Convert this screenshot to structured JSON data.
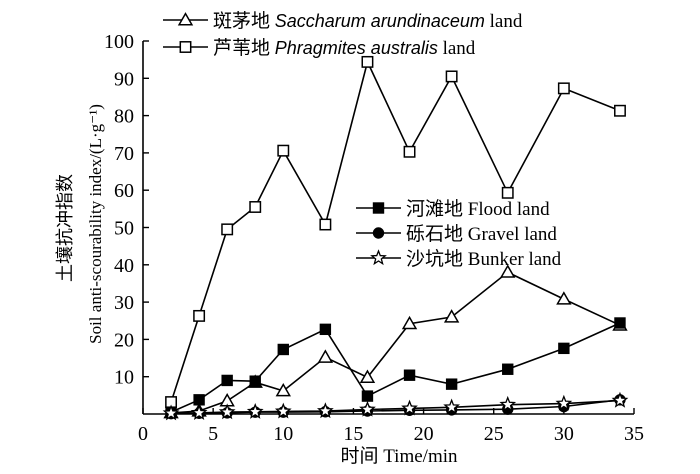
{
  "chart_data": {
    "type": "line",
    "xlabel": "时间 Time/min",
    "ylabel_line1": "土壤抗冲指数",
    "ylabel_line2": "Soil anti-scourability index/(L·g⁻¹)",
    "xlim": [
      0,
      35
    ],
    "ylim": [
      0,
      100
    ],
    "xticks": [
      0,
      5,
      10,
      15,
      20,
      25,
      30,
      35
    ],
    "yticks": [
      10,
      20,
      30,
      40,
      50,
      60,
      70,
      80,
      90,
      100
    ],
    "x": [
      2,
      4,
      6,
      8,
      10,
      13,
      16,
      19,
      22,
      26,
      30,
      34
    ],
    "grid": false,
    "series": [
      {
        "name_cn": "斑茅地",
        "name_en": "Saccharum arundinaceum",
        "name_suffix": "land",
        "marker": "triangle-open",
        "values": [
          0.3,
          0.8,
          3.5,
          8.5,
          6.2,
          15.2,
          9.8,
          24.2,
          26,
          38,
          30.8,
          23.8
        ]
      },
      {
        "name_cn": "芦苇地",
        "name_en": "Phragmites australis",
        "name_suffix": "land",
        "marker": "square-open",
        "values": [
          3.2,
          26.3,
          49.5,
          55.5,
          70.6,
          50.8,
          94.4,
          70.3,
          90.5,
          59.3,
          87.3,
          81.3
        ]
      },
      {
        "name_cn": "河滩地",
        "name_en": "Flood land",
        "marker": "square-filled",
        "values": [
          0.5,
          3.8,
          9.0,
          8.8,
          17.3,
          22.7,
          4.8,
          10.4,
          8.0,
          12.0,
          17.6,
          24.4
        ]
      },
      {
        "name_cn": "砾石地",
        "name_en": "Gravel land",
        "marker": "circle-filled",
        "values": [
          0.1,
          0.2,
          0.3,
          0.5,
          0.5,
          0.6,
          0.8,
          1.0,
          1.1,
          1.3,
          2.0,
          3.8
        ]
      },
      {
        "name_cn": "沙坑地",
        "name_en": "Bunker land",
        "marker": "star-open",
        "values": [
          0.2,
          0.3,
          0.5,
          0.6,
          0.7,
          0.8,
          1.2,
          1.5,
          1.8,
          2.5,
          2.8,
          3.6
        ]
      }
    ]
  }
}
